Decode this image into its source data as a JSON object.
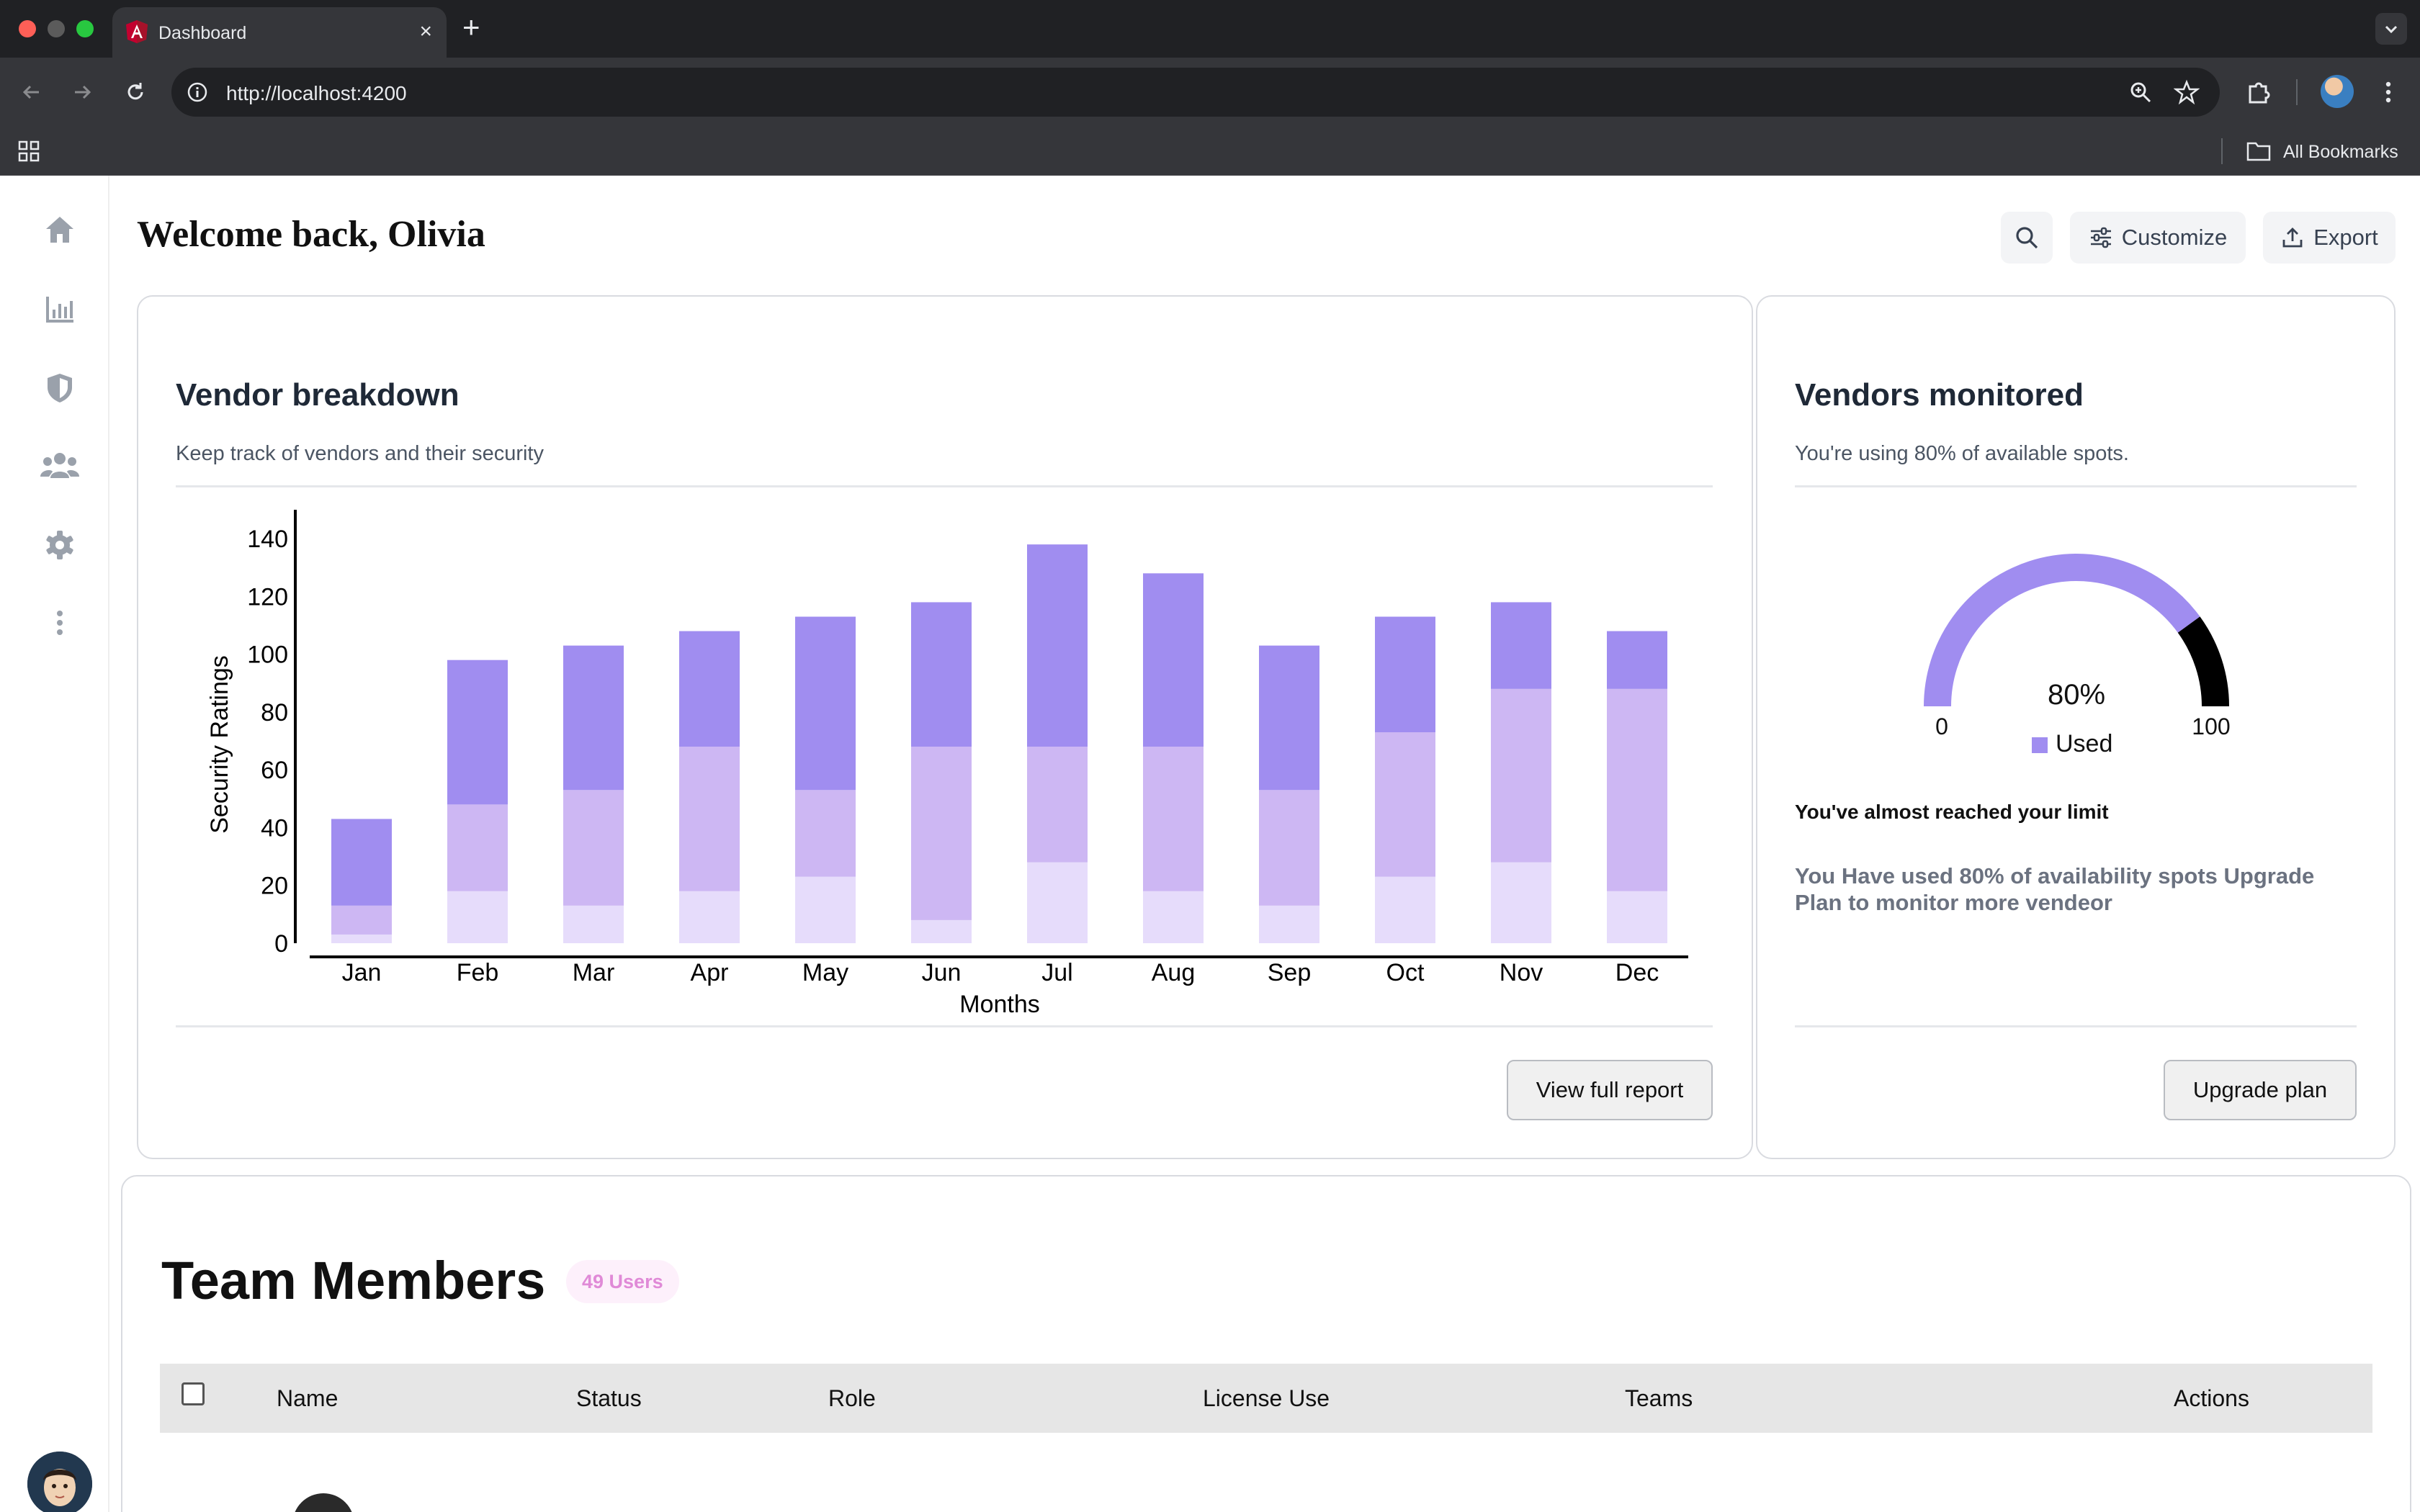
{
  "browser": {
    "tab_title": "Dashboard",
    "tab_close": "×",
    "new_tab": "+",
    "url": "http://localhost:4200",
    "bookmarks_label": "All Bookmarks"
  },
  "sidebar": {
    "items": [
      "home-icon",
      "chart-bar-icon",
      "shield-icon",
      "users-icon",
      "gear-icon",
      "more-vertical-icon"
    ]
  },
  "header": {
    "title": "Welcome back, Olivia",
    "customize_label": "Customize",
    "export_label": "Export"
  },
  "vendor_card": {
    "title": "Vendor breakdown",
    "subtitle": "Keep track of vendors and their security",
    "button_label": "View full report"
  },
  "chart_data": {
    "type": "bar",
    "stacked": true,
    "title": "",
    "xlabel": "Months",
    "ylabel": "Security Ratings",
    "ylim": [
      0,
      150
    ],
    "yticks": [
      0,
      20,
      40,
      60,
      80,
      100,
      120,
      140
    ],
    "categories": [
      "Jan",
      "Feb",
      "Mar",
      "Apr",
      "May",
      "Jun",
      "Jul",
      "Aug",
      "Sep",
      "Oct",
      "Nov",
      "Dec"
    ],
    "series": [
      {
        "values": [
          3,
          18,
          13,
          18,
          23,
          8,
          28,
          18,
          13,
          23,
          28,
          18
        ],
        "color": "#e6dcfb"
      },
      {
        "values": [
          10,
          30,
          40,
          50,
          30,
          60,
          40,
          50,
          40,
          50,
          60,
          70
        ],
        "color": "#cdb7f3"
      },
      {
        "values": [
          30,
          50,
          50,
          40,
          60,
          50,
          70,
          60,
          50,
          40,
          30,
          20
        ],
        "color": "#a08df0"
      }
    ],
    "grid": false,
    "legend": "none"
  },
  "monitor_card": {
    "title": "Vendors monitored",
    "subtitle": "You're using 80% of available spots.",
    "gauge": {
      "value": 80,
      "value_label": "80%",
      "min_label": "0",
      "max_label": "100",
      "legend_label": "Used",
      "used_color": "#a08df0",
      "remaining_color": "#000000"
    },
    "limit_heading": "You've almost reached your limit",
    "limit_note": "You Have used 80% of availability spots Upgrade Plan to monitor more vendeor",
    "button_label": "Upgrade plan"
  },
  "team": {
    "title": "Team Members",
    "badge": "49 Users",
    "columns": [
      "Name",
      "Status",
      "Role",
      "License Use",
      "Teams",
      "Actions"
    ]
  }
}
